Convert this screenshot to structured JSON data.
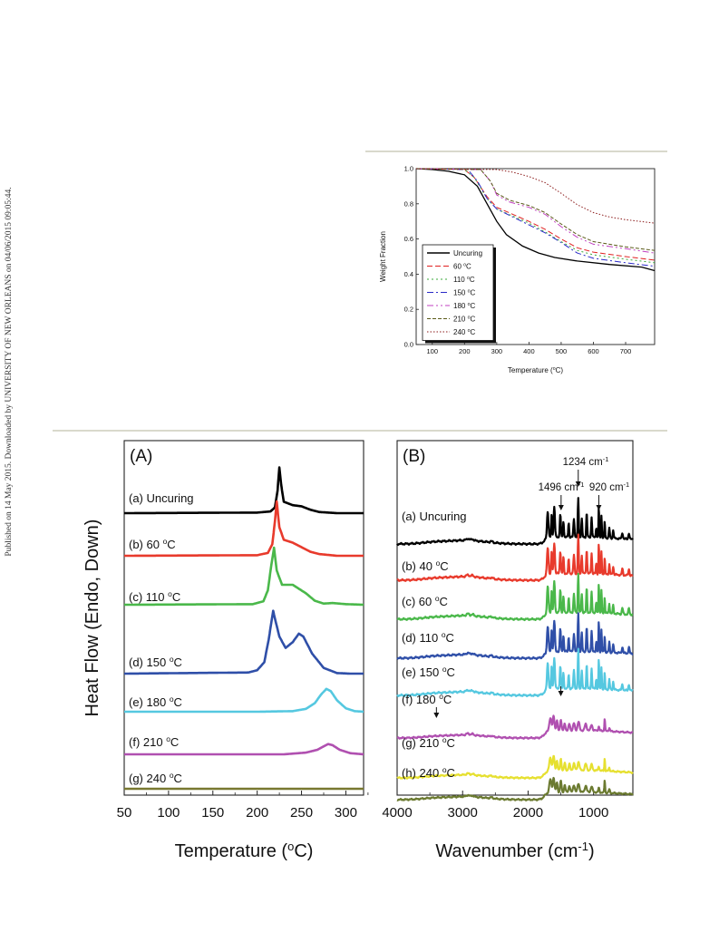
{
  "side_note": "Published on 14 May 2015. Downloaded by UNIVERSITY OF NEW ORLEANS on 04/06/2015 09:05:44.",
  "chart_data": [
    {
      "id": "tga",
      "type": "line",
      "title": "",
      "xlabel": "Temperature (°C)",
      "ylabel": "Weight Fraction",
      "xlim": [
        50,
        790
      ],
      "ylim": [
        0,
        1.0
      ],
      "xticks": [
        100,
        200,
        300,
        400,
        500,
        600,
        700
      ],
      "yticks": [
        0.0,
        0.2,
        0.4,
        0.6,
        0.8,
        1.0
      ],
      "legend_position": "bottom-left",
      "series": [
        {
          "name": "Uncuring",
          "color": "#000000",
          "dash": "",
          "points": [
            [
              50,
              1.0
            ],
            [
              100,
              0.995
            ],
            [
              150,
              0.985
            ],
            [
              200,
              0.965
            ],
            [
              240,
              0.9
            ],
            [
              270,
              0.8
            ],
            [
              300,
              0.7
            ],
            [
              330,
              0.625
            ],
            [
              380,
              0.56
            ],
            [
              430,
              0.52
            ],
            [
              480,
              0.495
            ],
            [
              550,
              0.475
            ],
            [
              650,
              0.455
            ],
            [
              750,
              0.44
            ],
            [
              790,
              0.42
            ]
          ]
        },
        {
          "name": "60 °C",
          "color": "#e02020",
          "dash": "6 3",
          "points": [
            [
              50,
              1.0
            ],
            [
              200,
              0.995
            ],
            [
              230,
              0.95
            ],
            [
              270,
              0.84
            ],
            [
              300,
              0.78
            ],
            [
              350,
              0.74
            ],
            [
              400,
              0.7
            ],
            [
              450,
              0.655
            ],
            [
              500,
              0.6
            ],
            [
              550,
              0.55
            ],
            [
              600,
              0.525
            ],
            [
              700,
              0.5
            ],
            [
              790,
              0.48
            ]
          ]
        },
        {
          "name": "110 °C",
          "color": "#3aa83a",
          "dash": "2 3",
          "points": [
            [
              50,
              1.0
            ],
            [
              200,
              0.995
            ],
            [
              230,
              0.95
            ],
            [
              270,
              0.83
            ],
            [
              300,
              0.77
            ],
            [
              350,
              0.73
            ],
            [
              400,
              0.69
            ],
            [
              450,
              0.64
            ],
            [
              500,
              0.585
            ],
            [
              550,
              0.535
            ],
            [
              600,
              0.51
            ],
            [
              700,
              0.485
            ],
            [
              790,
              0.465
            ]
          ]
        },
        {
          "name": "150 °C",
          "color": "#2a2ac8",
          "dash": "7 3 2 3",
          "points": [
            [
              50,
              1.0
            ],
            [
              210,
              0.995
            ],
            [
              240,
              0.93
            ],
            [
              270,
              0.83
            ],
            [
              300,
              0.77
            ],
            [
              350,
              0.725
            ],
            [
              400,
              0.68
            ],
            [
              450,
              0.635
            ],
            [
              500,
              0.58
            ],
            [
              550,
              0.52
            ],
            [
              600,
              0.49
            ],
            [
              700,
              0.465
            ],
            [
              790,
              0.445
            ]
          ]
        },
        {
          "name": "180 °C",
          "color": "#c040c0",
          "dash": "7 3 2 3 2 3",
          "points": [
            [
              50,
              1.0
            ],
            [
              250,
              0.995
            ],
            [
              280,
              0.93
            ],
            [
              300,
              0.85
            ],
            [
              340,
              0.81
            ],
            [
              400,
              0.78
            ],
            [
              450,
              0.74
            ],
            [
              500,
              0.67
            ],
            [
              550,
              0.61
            ],
            [
              600,
              0.57
            ],
            [
              700,
              0.545
            ],
            [
              790,
              0.52
            ]
          ]
        },
        {
          "name": "210 °C",
          "color": "#5a5a18",
          "dash": "4 2",
          "points": [
            [
              50,
              1.0
            ],
            [
              250,
              0.995
            ],
            [
              280,
              0.93
            ],
            [
              300,
              0.86
            ],
            [
              340,
              0.82
            ],
            [
              400,
              0.79
            ],
            [
              450,
              0.75
            ],
            [
              500,
              0.685
            ],
            [
              550,
              0.625
            ],
            [
              600,
              0.585
            ],
            [
              700,
              0.555
            ],
            [
              790,
              0.535
            ]
          ]
        },
        {
          "name": "240 °C",
          "color": "#8b1a1a",
          "dash": "1.5 2",
          "points": [
            [
              50,
              1.0
            ],
            [
              300,
              0.995
            ],
            [
              350,
              0.98
            ],
            [
              400,
              0.955
            ],
            [
              450,
              0.92
            ],
            [
              500,
              0.86
            ],
            [
              550,
              0.795
            ],
            [
              600,
              0.75
            ],
            [
              650,
              0.725
            ],
            [
              700,
              0.71
            ],
            [
              790,
              0.69
            ]
          ]
        }
      ]
    },
    {
      "id": "dsc",
      "type": "line",
      "title": "(A)",
      "xlabel": "Temperature (°C)",
      "ylabel": "Heat Flow (Endo, Down)",
      "xlim": [
        50,
        320
      ],
      "xticks": [
        50,
        100,
        150,
        200,
        250,
        300
      ],
      "yticks": [],
      "series": [
        {
          "name": "(a) Uncuring",
          "color": "#000000",
          "points": [
            [
              50,
              0
            ],
            [
              200,
              0.1
            ],
            [
              215,
              0.3
            ],
            [
              220,
              1.0
            ],
            [
              223,
              4.0
            ],
            [
              225,
              8.0
            ],
            [
              227,
              5.0
            ],
            [
              230,
              2.0
            ],
            [
              240,
              1.4
            ],
            [
              250,
              1.2
            ],
            [
              260,
              0.6
            ],
            [
              270,
              0.2
            ],
            [
              290,
              0
            ],
            [
              320,
              0
            ]
          ]
        },
        {
          "name": "(b) 60 °C",
          "color": "#e83a2c",
          "points": [
            [
              50,
              0
            ],
            [
              200,
              0.1
            ],
            [
              212,
              0.5
            ],
            [
              217,
              2.0
            ],
            [
              220,
              6.0
            ],
            [
              222,
              9.5
            ],
            [
              225,
              5.0
            ],
            [
              230,
              2.8
            ],
            [
              240,
              2.3
            ],
            [
              250,
              1.5
            ],
            [
              260,
              0.7
            ],
            [
              270,
              0.3
            ],
            [
              290,
              0
            ],
            [
              320,
              0
            ]
          ]
        },
        {
          "name": "(c) 110 °C",
          "color": "#4ab84a",
          "points": [
            [
              50,
              0
            ],
            [
              195,
              0.1
            ],
            [
              207,
              0.6
            ],
            [
              212,
              2.5
            ],
            [
              216,
              7.0
            ],
            [
              219,
              10.0
            ],
            [
              222,
              6.0
            ],
            [
              228,
              3.5
            ],
            [
              240,
              3.5
            ],
            [
              255,
              2.0
            ],
            [
              265,
              0.7
            ],
            [
              275,
              0.2
            ],
            [
              285,
              0.3
            ],
            [
              300,
              0.1
            ],
            [
              320,
              0
            ]
          ]
        },
        {
          "name": "(d) 150 °C",
          "color": "#2f4fa8",
          "points": [
            [
              50,
              0
            ],
            [
              190,
              0.2
            ],
            [
              200,
              0.6
            ],
            [
              208,
              2.0
            ],
            [
              213,
              6.0
            ],
            [
              218,
              11.0
            ],
            [
              221,
              9.0
            ],
            [
              225,
              6.5
            ],
            [
              232,
              4.5
            ],
            [
              240,
              5.5
            ],
            [
              247,
              7.0
            ],
            [
              252,
              6.5
            ],
            [
              262,
              3.5
            ],
            [
              275,
              1.0
            ],
            [
              290,
              0.1
            ],
            [
              305,
              0
            ],
            [
              320,
              0
            ]
          ]
        },
        {
          "name": "(e) 180 °C",
          "color": "#55c8e0",
          "points": [
            [
              50,
              0
            ],
            [
              200,
              0
            ],
            [
              240,
              0.1
            ],
            [
              255,
              0.5
            ],
            [
              265,
              1.5
            ],
            [
              272,
              3.0
            ],
            [
              278,
              4.0
            ],
            [
              283,
              3.6
            ],
            [
              290,
              2.0
            ],
            [
              300,
              0.6
            ],
            [
              310,
              0.1
            ],
            [
              320,
              0
            ]
          ]
        },
        {
          "name": "(f) 210 °C",
          "color": "#b050b0",
          "points": [
            [
              50,
              0
            ],
            [
              230,
              0
            ],
            [
              255,
              0.3
            ],
            [
              268,
              0.8
            ],
            [
              275,
              1.4
            ],
            [
              280,
              1.8
            ],
            [
              285,
              1.6
            ],
            [
              293,
              0.8
            ],
            [
              305,
              0.2
            ],
            [
              320,
              0
            ]
          ]
        },
        {
          "name": "(g) 240 °C",
          "color": "#787830",
          "points": [
            [
              50,
              0
            ],
            [
              320,
              0
            ]
          ]
        }
      ]
    },
    {
      "id": "ftir",
      "type": "line",
      "title": "(B)",
      "xlabel": "Wavenumber (cm⁻¹)",
      "ylabel": "",
      "xlim": [
        4000,
        400
      ],
      "xreversed": true,
      "xticks": [
        4000,
        3000,
        2000,
        1000
      ],
      "yticks": [],
      "annotations": [
        {
          "text": "1496 cm⁻¹",
          "x": 1496
        },
        {
          "text": "1234 cm⁻¹",
          "x": 1234
        },
        {
          "text": "920 cm⁻¹",
          "x": 920
        },
        {
          "text": "",
          "x": 3400,
          "series": "(f) 180 °C"
        },
        {
          "text": "",
          "x": 1500,
          "series": "(f) 180 °C"
        }
      ],
      "series": [
        {
          "name": "(a) Uncuring",
          "color": "#000000",
          "peaks": "strong"
        },
        {
          "name": "(b) 40 °C",
          "color": "#e83a2c",
          "peaks": "strong"
        },
        {
          "name": "(c) 60 °C",
          "color": "#4ab84a",
          "peaks": "strong"
        },
        {
          "name": "(d) 110 °C",
          "color": "#2f4fa8",
          "peaks": "strong"
        },
        {
          "name": "(e) 150 °C",
          "color": "#55c8e0",
          "peaks": "strong"
        },
        {
          "name": "(f) 180 °C",
          "color": "#b050b0",
          "peaks": "weak"
        },
        {
          "name": "(g) 210 °C",
          "color": "#e6e030",
          "peaks": "weak"
        },
        {
          "name": "(h) 240 °C",
          "color": "#6b7a30",
          "peaks": "weak"
        }
      ]
    }
  ]
}
